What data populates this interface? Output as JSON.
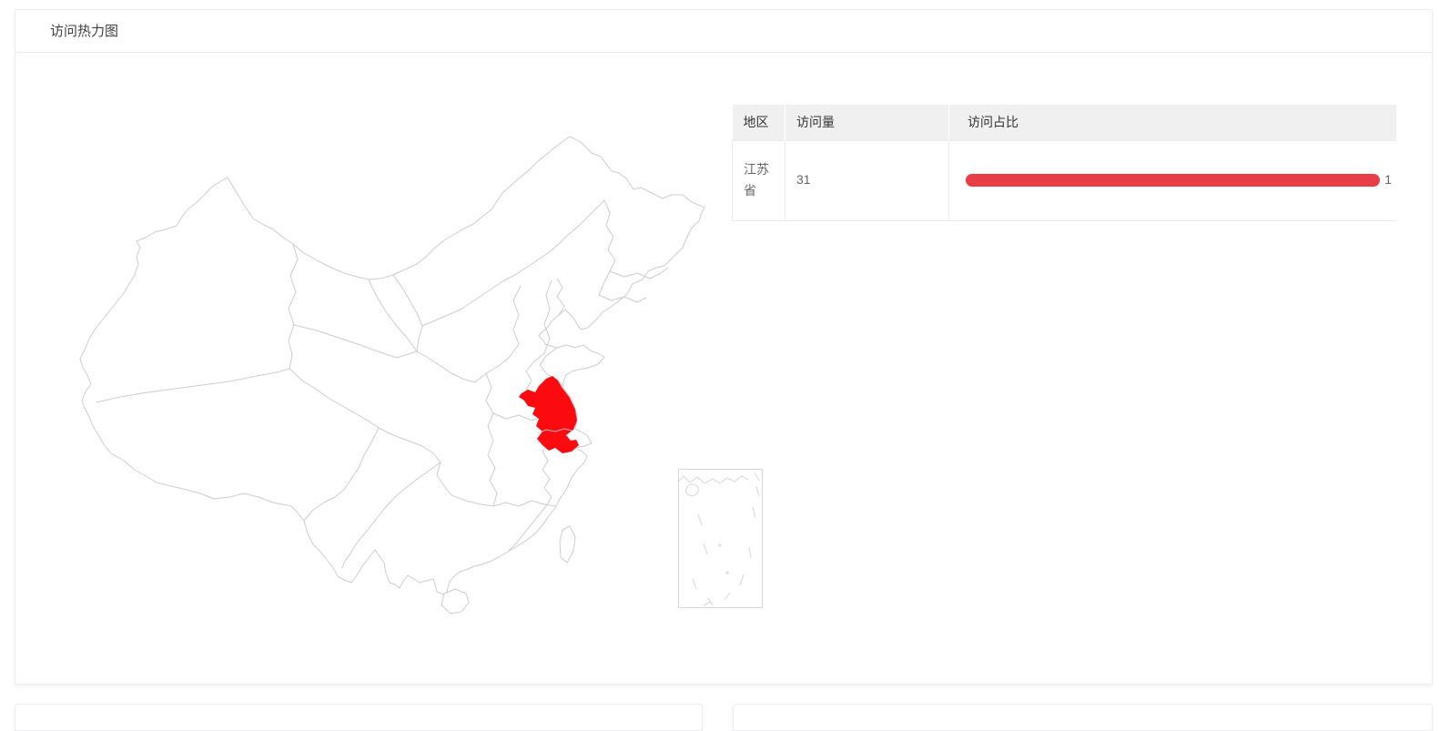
{
  "heatmap_card": {
    "title": "访问热力图",
    "map": {
      "kind": "china-province-heatmap",
      "stroke_color": "#cccccc",
      "inset_stroke_color": "#d6d6d6",
      "land_fill": "#ffffff",
      "highlight_region": "江苏省",
      "highlight_color": "#fb0a10"
    },
    "table": {
      "headers": [
        "地区",
        "访问量",
        "访问占比"
      ],
      "bar_color": "#e83e48",
      "rows": [
        {
          "region": "江苏省",
          "visits": "31",
          "ratio": 1,
          "ratio_label": "1"
        }
      ]
    }
  },
  "chart_data": {
    "type": "heatmap",
    "subtype": "china-map",
    "title": "访问热力图",
    "regions": [
      {
        "name": "江苏省",
        "value": 31,
        "ratio": 1
      }
    ],
    "columns": [
      "地区",
      "访问量",
      "访问占比"
    ],
    "highlight_color": "#fb0a10",
    "legend_position": "none"
  }
}
